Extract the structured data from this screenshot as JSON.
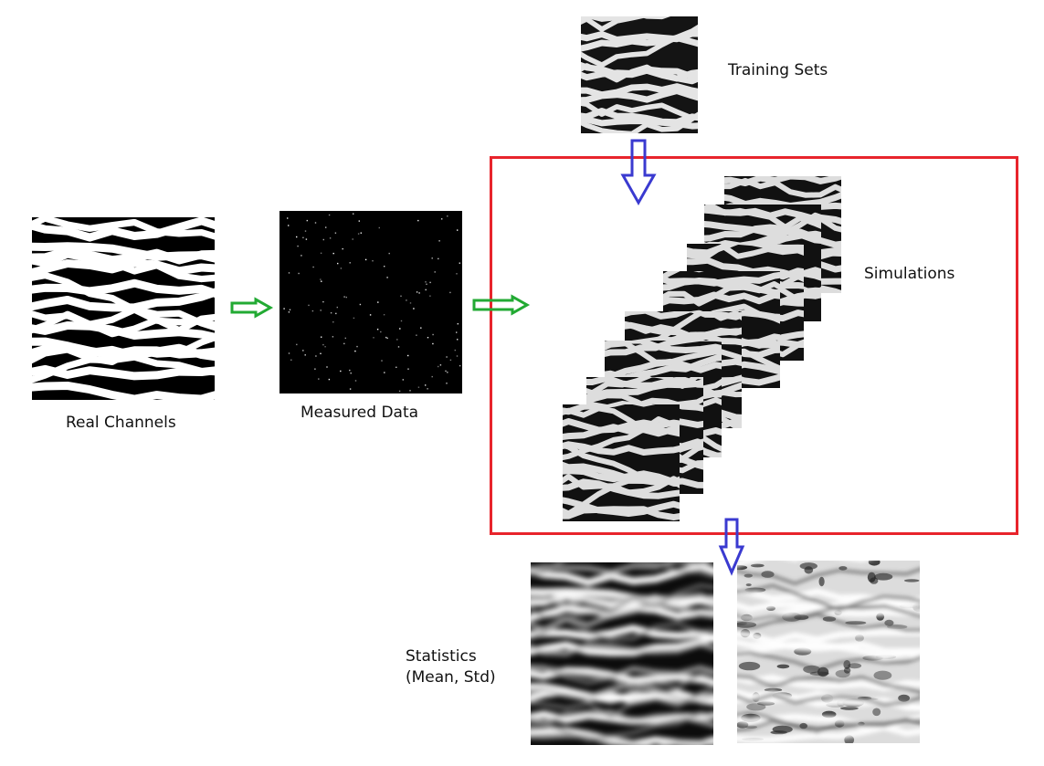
{
  "labels": {
    "real_channels": "Real Channels",
    "measured_data": "Measured Data",
    "training_sets": "Training Sets",
    "simulations": "Simulations",
    "statistics_line1": "Statistics",
    "statistics_line2": "(Mean, Std)"
  },
  "colors": {
    "flow_arrow": "#22aa33",
    "down_arrow": "#3a3ad0",
    "box_border": "#e8242c",
    "channel": "#ffffff",
    "binary_background": "#000000",
    "simulation_channel": "#dddddd",
    "simulation_background": "#111111"
  },
  "simulations_count": 8
}
